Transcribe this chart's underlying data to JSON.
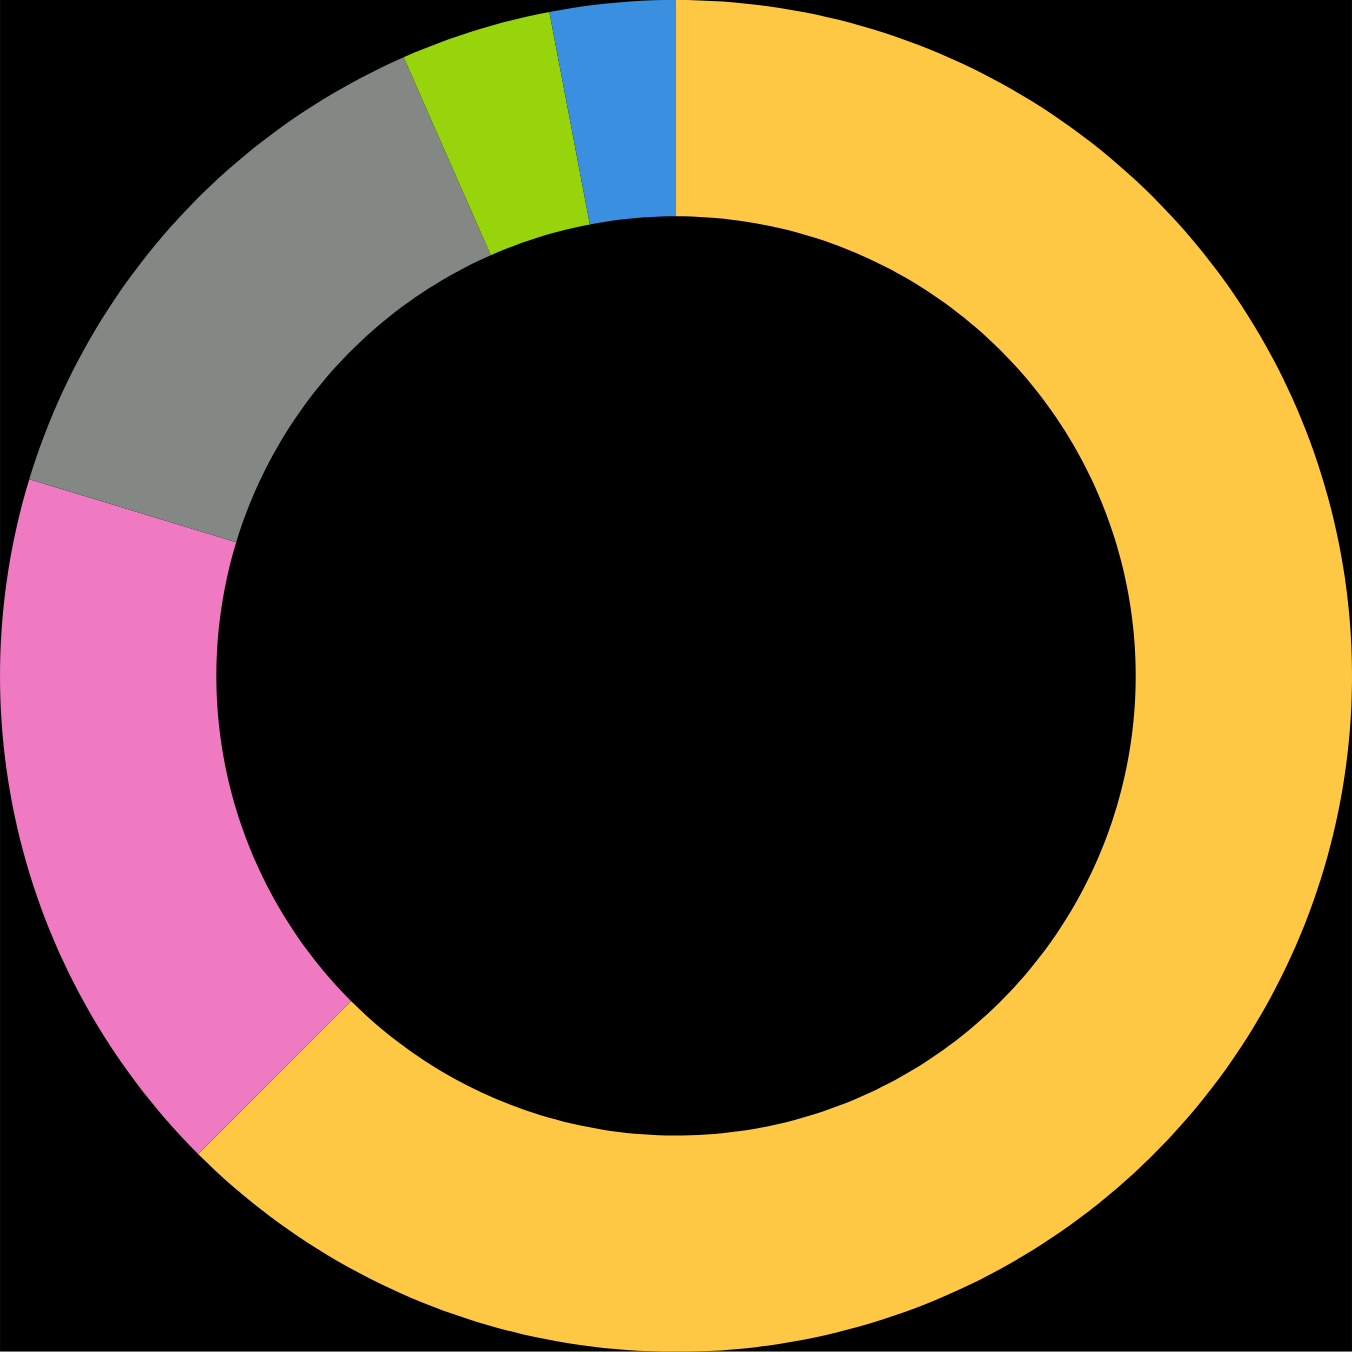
{
  "chart_data": {
    "type": "donut",
    "categories": [
      null,
      null,
      null,
      null,
      null
    ],
    "values": [
      62.5,
      17.2,
      13.7,
      3.6,
      3.0
    ],
    "colors": [
      "#fec844",
      "#ef7ac2",
      "#838884",
      "#97d40b",
      "#3a8fe0"
    ]
  }
}
